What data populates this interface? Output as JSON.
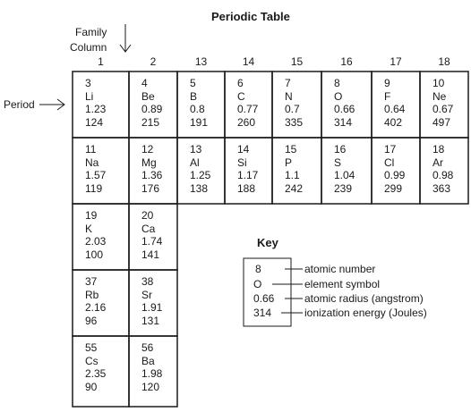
{
  "title": "Periodic Table",
  "family_label_line1": "Family",
  "family_label_line2": "Column",
  "period_label": "Period",
  "columns": [
    "1",
    "2",
    "13",
    "14",
    "15",
    "16",
    "17",
    "18"
  ],
  "elements": [
    {
      "row": 0,
      "col": 0,
      "number": "3",
      "symbol": "Li",
      "radius": "1.23",
      "energy": "124"
    },
    {
      "row": 0,
      "col": 1,
      "number": "4",
      "symbol": "Be",
      "radius": "0.89",
      "energy": "215"
    },
    {
      "row": 0,
      "col": 2,
      "number": "5",
      "symbol": "B",
      "radius": "0.8",
      "energy": "191"
    },
    {
      "row": 0,
      "col": 3,
      "number": "6",
      "symbol": "C",
      "radius": "0.77",
      "energy": "260"
    },
    {
      "row": 0,
      "col": 4,
      "number": "7",
      "symbol": "N",
      "radius": "0.7",
      "energy": "335"
    },
    {
      "row": 0,
      "col": 5,
      "number": "8",
      "symbol": "O",
      "radius": "0.66",
      "energy": "314"
    },
    {
      "row": 0,
      "col": 6,
      "number": "9",
      "symbol": "F",
      "radius": "0.64",
      "energy": "402"
    },
    {
      "row": 0,
      "col": 7,
      "number": "10",
      "symbol": "Ne",
      "radius": "0.67",
      "energy": "497"
    },
    {
      "row": 1,
      "col": 0,
      "number": "11",
      "symbol": "Na",
      "radius": "1.57",
      "energy": "119"
    },
    {
      "row": 1,
      "col": 1,
      "number": "12",
      "symbol": "Mg",
      "radius": "1.36",
      "energy": "176"
    },
    {
      "row": 1,
      "col": 2,
      "number": "13",
      "symbol": "Al",
      "radius": "1.25",
      "energy": "138"
    },
    {
      "row": 1,
      "col": 3,
      "number": "14",
      "symbol": "Si",
      "radius": "1.17",
      "energy": "188"
    },
    {
      "row": 1,
      "col": 4,
      "number": "15",
      "symbol": "P",
      "radius": "1.1",
      "energy": "242"
    },
    {
      "row": 1,
      "col": 5,
      "number": "16",
      "symbol": "S",
      "radius": "1.04",
      "energy": "239"
    },
    {
      "row": 1,
      "col": 6,
      "number": "17",
      "symbol": "Cl",
      "radius": "0.99",
      "energy": "299"
    },
    {
      "row": 1,
      "col": 7,
      "number": "18",
      "symbol": "Ar",
      "radius": "0.98",
      "energy": "363"
    },
    {
      "row": 2,
      "col": 0,
      "number": "19",
      "symbol": "K",
      "radius": "2.03",
      "energy": "100"
    },
    {
      "row": 2,
      "col": 1,
      "number": "20",
      "symbol": "Ca",
      "radius": "1.74",
      "energy": "141"
    },
    {
      "row": 3,
      "col": 0,
      "number": "37",
      "symbol": "Rb",
      "radius": "2.16",
      "energy": "96"
    },
    {
      "row": 3,
      "col": 1,
      "number": "38",
      "symbol": "Sr",
      "radius": "1.91",
      "energy": "131"
    },
    {
      "row": 4,
      "col": 0,
      "number": "55",
      "symbol": "Cs",
      "radius": "2.35",
      "energy": "90"
    },
    {
      "row": 4,
      "col": 1,
      "number": "56",
      "symbol": "Ba",
      "radius": "1.98",
      "energy": "120"
    }
  ],
  "key": {
    "title": "Key",
    "values": [
      "8",
      "O",
      "0.66",
      "314"
    ],
    "descriptions": [
      "atomic number",
      "element symbol",
      "atomic radius (angstrom)",
      "ionization energy (Joules)"
    ]
  },
  "colors": {
    "line": "#1a1a1a",
    "background": "#ffffff"
  }
}
